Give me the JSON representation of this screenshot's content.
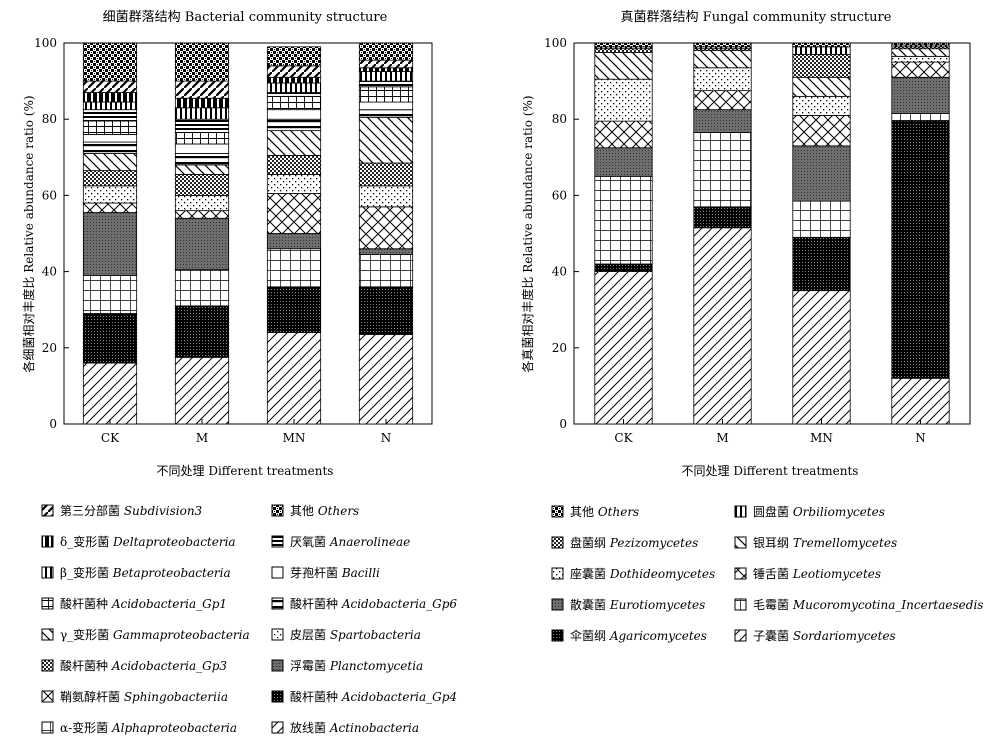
{
  "chart_data": [
    {
      "type": "bar",
      "stacked": true,
      "title": "细菌群落结构 Bacterial community structure",
      "xlabel": "不同处理 Different treatments",
      "ylabel": "各细菌相对丰度比 Relative abundance ratio (%)",
      "ylim": [
        0,
        100
      ],
      "yticks": [
        0,
        20,
        40,
        60,
        80,
        100
      ],
      "categories": [
        "CK",
        "M",
        "MN",
        "N"
      ],
      "legend_placement": "bottom-left",
      "series": [
        {
          "name": "放线菌",
          "latin": "Actinobacteria",
          "pattern": "hatch-diag",
          "values": [
            16,
            17.5,
            24,
            23.5
          ]
        },
        {
          "name": "酸杆菌种",
          "latin": "Acidobacteria_Gp4",
          "pattern": "dense-dots",
          "values": [
            13,
            13.5,
            12,
            12.5
          ]
        },
        {
          "name": "α-变形菌",
          "latin": "Alphaproteobacteria",
          "pattern": "grid",
          "values": [
            10,
            9.5,
            10,
            8.5
          ]
        },
        {
          "name": "浮霉菌",
          "latin": "Planctomycetia",
          "pattern": "dark-gray",
          "values": [
            16.5,
            13.5,
            4,
            1.5
          ]
        },
        {
          "name": "鞘氨醇杆菌",
          "latin": "Sphingobacteriia",
          "pattern": "cross-diag",
          "values": [
            2.5,
            2,
            10.5,
            11
          ]
        },
        {
          "name": "皮层菌",
          "latin": "Spartobacteria",
          "pattern": "sparse-dots",
          "values": [
            4.5,
            4,
            5,
            5.5
          ]
        },
        {
          "name": "酸杆菌种",
          "latin": "Acidobacteria_Gp3",
          "pattern": "checker-fine",
          "values": [
            4,
            5.5,
            5,
            6
          ]
        },
        {
          "name": "γ_变形菌",
          "latin": "Gammaproteobacteria",
          "pattern": "back-diag",
          "values": [
            4.5,
            2.5,
            6.5,
            12
          ]
        },
        {
          "name": "酸杆菌种",
          "latin": "Acidobacteria_Gp6",
          "pattern": "h-lines",
          "values": [
            3,
            3,
            3,
            2
          ]
        },
        {
          "name": "芽孢杆菌",
          "latin": "Bacilli",
          "pattern": "blank",
          "values": [
            2,
            2.5,
            2.5,
            2
          ]
        },
        {
          "name": "酸杆菌种",
          "latin": "Acidobacteria_Gp1",
          "pattern": "h-grid",
          "values": [
            3.5,
            3,
            3.5,
            4
          ]
        },
        {
          "name": "厌氧菌",
          "latin": "Anaerolineae",
          "pattern": "bold-h",
          "values": [
            3,
            3.5,
            1,
            1.5
          ]
        },
        {
          "name": "β_变形菌",
          "latin": "Betaproteobacteria",
          "pattern": "v-lines",
          "values": [
            2,
            3,
            2.5,
            2.5
          ]
        },
        {
          "name": "δ_变形菌",
          "latin": "Deltaproteobacteria",
          "pattern": "bricks",
          "values": [
            2.5,
            2.5,
            1.5,
            1
          ]
        },
        {
          "name": "第三分部菌",
          "latin": "Subdivision3",
          "pattern": "diag-bold",
          "values": [
            3,
            4.5,
            3,
            2
          ]
        },
        {
          "name": "其他",
          "latin": "Others",
          "pattern": "checker",
          "values": [
            10,
            10,
            5,
            4.5
          ]
        }
      ]
    },
    {
      "type": "bar",
      "stacked": true,
      "title": "真菌群落结构 Fungal community structure",
      "xlabel": "不同处理 Different treatments",
      "ylabel": "各真菌相对丰度比 Relative abundance ratio (%)",
      "ylim": [
        0,
        100
      ],
      "yticks": [
        0,
        20,
        40,
        60,
        80,
        100
      ],
      "categories": [
        "CK",
        "M",
        "MN",
        "N"
      ],
      "legend_placement": "bottom-right",
      "series": [
        {
          "name": "子囊菌",
          "latin": "Sordariomycetes",
          "pattern": "hatch-diag",
          "values": [
            40,
            51.5,
            35,
            12
          ]
        },
        {
          "name": "伞菌纲",
          "latin": "Agaricomycetes",
          "pattern": "dense-dots",
          "values": [
            2,
            5.5,
            14,
            67.5
          ]
        },
        {
          "name": "毛霉菌",
          "latin": "Mucoromycotina_Incertaesedis",
          "pattern": "grid",
          "values": [
            23,
            19.5,
            9.5,
            2
          ]
        },
        {
          "name": "散囊菌",
          "latin": "Eurotiomycetes",
          "pattern": "dark-gray",
          "values": [
            7.5,
            6,
            14.5,
            9.5
          ]
        },
        {
          "name": "锤舌菌",
          "latin": "Leotiomycetes",
          "pattern": "cross-diag",
          "values": [
            7,
            5,
            8,
            4
          ]
        },
        {
          "name": "座囊菌",
          "latin": "Dothideomycetes",
          "pattern": "sparse-dots",
          "values": [
            11,
            6,
            5,
            1.5
          ]
        },
        {
          "name": "银耳纲",
          "latin": "Tremellomycetes",
          "pattern": "back-diag",
          "values": [
            7,
            4.5,
            5,
            2
          ]
        },
        {
          "name": "盘菌纲",
          "latin": "Pezizomycetes",
          "pattern": "checker-fine",
          "values": [
            1,
            0.5,
            6,
            0.5
          ]
        },
        {
          "name": "圆盘菌",
          "latin": "Orbiliomycetes",
          "pattern": "v-lines",
          "values": [
            0.5,
            0.5,
            2,
            0.5
          ]
        },
        {
          "name": "其他",
          "latin": "Others",
          "pattern": "checker",
          "values": [
            1,
            1,
            1,
            0.5
          ]
        }
      ]
    }
  ],
  "legends": {
    "bacterial": {
      "col1": [
        {
          "label": "第三分部菌",
          "latin": "Subdivision3",
          "pattern": "diag-bold"
        },
        {
          "label": "δ_变形菌",
          "latin": "Deltaproteobacteria",
          "pattern": "bricks"
        },
        {
          "label": "β_变形菌",
          "latin": "Betaproteobacteria",
          "pattern": "v-lines"
        },
        {
          "label": "酸杆菌种",
          "latin": "Acidobacteria_Gp1",
          "pattern": "h-grid"
        },
        {
          "label": "γ_变形菌",
          "latin": "Gammaproteobacteria",
          "pattern": "back-diag"
        },
        {
          "label": "酸杆菌种",
          "latin": "Acidobacteria_Gp3",
          "pattern": "checker-fine"
        },
        {
          "label": "鞘氨醇杆菌",
          "latin": "Sphingobacteriia",
          "pattern": "cross-diag"
        },
        {
          "label": "α-变形菌",
          "latin": "Alphaproteobacteria",
          "pattern": "grid"
        }
      ],
      "col2": [
        {
          "label": "其他",
          "latin": "Others",
          "pattern": "checker"
        },
        {
          "label": "厌氧菌",
          "latin": "Anaerolineae",
          "pattern": "bold-h"
        },
        {
          "label": "芽孢杆菌",
          "latin": "Bacilli",
          "pattern": "blank"
        },
        {
          "label": "酸杆菌种",
          "latin": "Acidobacteria_Gp6",
          "pattern": "h-lines"
        },
        {
          "label": "皮层菌",
          "latin": "Spartobacteria",
          "pattern": "sparse-dots"
        },
        {
          "label": "浮霉菌",
          "latin": "Planctomycetia",
          "pattern": "dark-gray"
        },
        {
          "label": "酸杆菌种",
          "latin": "Acidobacteria_Gp4",
          "pattern": "dense-dots"
        },
        {
          "label": "放线菌",
          "latin": "Actinobacteria",
          "pattern": "hatch-diag"
        }
      ]
    },
    "fungal": {
      "col1": [
        {
          "label": "其他",
          "latin": "Others",
          "pattern": "checker"
        },
        {
          "label": "盘菌纲",
          "latin": "Pezizomycetes",
          "pattern": "checker-fine"
        },
        {
          "label": "座囊菌",
          "latin": "Dothideomycetes",
          "pattern": "sparse-dots"
        },
        {
          "label": "散囊菌",
          "latin": "Eurotiomycetes",
          "pattern": "dark-gray"
        },
        {
          "label": "伞菌纲",
          "latin": "Agaricomycetes",
          "pattern": "dense-dots"
        }
      ],
      "col2": [
        {
          "label": "圆盘菌",
          "latin": "Orbiliomycetes",
          "pattern": "v-lines"
        },
        {
          "label": "银耳纲",
          "latin": "Tremellomycetes",
          "pattern": "back-diag"
        },
        {
          "label": "锤舌菌",
          "latin": "Leotiomycetes",
          "pattern": "cross-diag"
        },
        {
          "label": "毛霉菌",
          "latin": "Mucoromycotina_Incertaesedis",
          "pattern": "grid"
        },
        {
          "label": "子囊菌",
          "latin": "Sordariomycetes",
          "pattern": "hatch-diag"
        }
      ]
    }
  }
}
